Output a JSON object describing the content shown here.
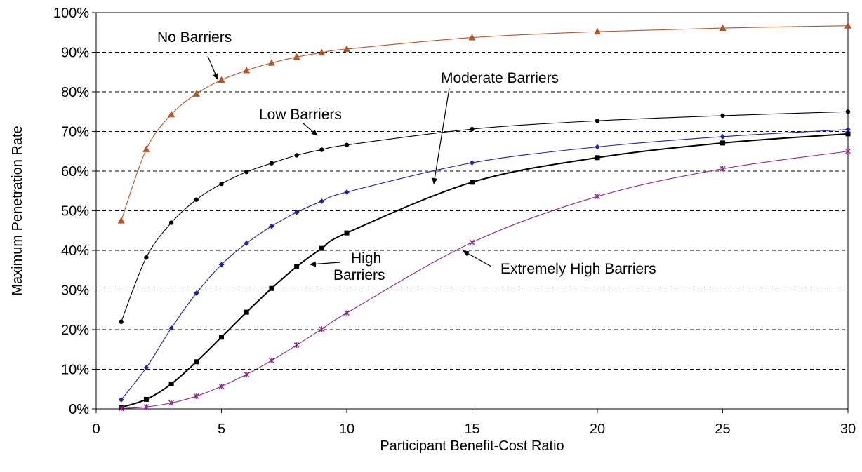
{
  "chart_data": {
    "type": "line",
    "title": "",
    "xlabel": "Participant Benefit-Cost Ratio",
    "ylabel": "Maximum Penetration Rate",
    "xlim": [
      0,
      30
    ],
    "ylim": [
      0,
      100
    ],
    "x_ticks": [
      "0",
      "5",
      "10",
      "15",
      "20",
      "25",
      "30"
    ],
    "y_ticks": [
      "0%",
      "10%",
      "20%",
      "30%",
      "40%",
      "50%",
      "60%",
      "70%",
      "80%",
      "90%",
      "100%"
    ],
    "grid": "horizontal dashed",
    "legend": "none (inline annotations)",
    "x": [
      1,
      2,
      3,
      4,
      5,
      6,
      7,
      8,
      9,
      10,
      15,
      20,
      25,
      30
    ],
    "series": [
      {
        "id": "no",
        "name": "No Barriers",
        "color": "#B5542A",
        "marker": "triangle",
        "values": [
          47.5,
          65.5,
          74.3,
          79.5,
          83.0,
          85.4,
          87.3,
          88.8,
          89.9,
          90.8,
          93.7,
          95.2,
          96.1,
          96.7
        ]
      },
      {
        "id": "low",
        "name": "Low Barriers",
        "color": "#000000",
        "marker": "circle",
        "values": [
          22.0,
          38.2,
          47.0,
          52.8,
          56.8,
          59.8,
          62.0,
          64.0,
          65.4,
          66.6,
          70.6,
          72.7,
          74.0,
          75.0
        ]
      },
      {
        "id": "moderate",
        "name": "Moderate Barriers",
        "color": "#1F1FA8",
        "marker": "diamond",
        "values": [
          2.3,
          10.4,
          20.4,
          29.2,
          36.4,
          41.8,
          46.1,
          49.6,
          52.4,
          54.7,
          62.1,
          66.1,
          68.7,
          70.5
        ]
      },
      {
        "id": "high",
        "name": "High Barriers",
        "color": "#000000",
        "marker": "square",
        "values": [
          0.4,
          2.4,
          6.3,
          11.9,
          18.1,
          24.4,
          30.4,
          35.9,
          40.5,
          44.4,
          57.2,
          63.4,
          67.1,
          69.4
        ]
      },
      {
        "id": "extreme",
        "name": "Extremely High Barriers",
        "color": "#8B2A8B",
        "marker": "star",
        "values": [
          0.1,
          0.5,
          1.5,
          3.2,
          5.7,
          8.7,
          12.2,
          16.1,
          20.1,
          24.2,
          42.0,
          53.6,
          60.6,
          65.0
        ]
      }
    ],
    "annotations": [
      {
        "id": "no",
        "lines": [
          "No Barriers"
        ]
      },
      {
        "id": "low",
        "lines": [
          "Low Barriers"
        ]
      },
      {
        "id": "moderate",
        "lines": [
          "Moderate Barriers"
        ]
      },
      {
        "id": "high",
        "lines": [
          "High",
          "Barriers"
        ]
      },
      {
        "id": "extreme",
        "lines": [
          "Extremely High Barriers"
        ]
      }
    ]
  }
}
